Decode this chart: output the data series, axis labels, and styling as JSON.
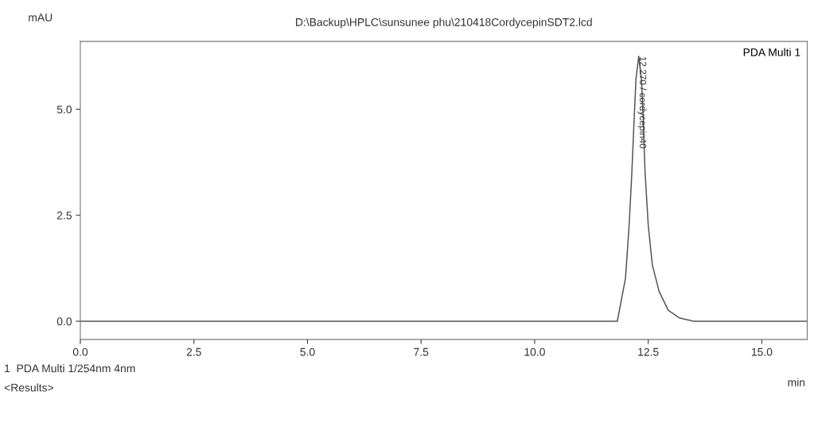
{
  "chart_data": {
    "type": "line",
    "title": "D:\\Backup\\HPLC\\sunsunee phu\\210418CordycepinSDT2.lcd",
    "xlabel": "min",
    "ylabel": "mAU",
    "series": [
      {
        "name": "PDA Multi 1",
        "color": "#555555",
        "x": [
          0.0,
          2.0,
          4.0,
          6.0,
          8.0,
          10.0,
          11.0,
          11.82,
          12.0,
          12.08,
          12.14,
          12.19,
          12.23,
          12.29,
          12.35,
          12.39,
          12.43,
          12.5,
          12.59,
          12.74,
          12.94,
          13.18,
          13.5,
          14.5,
          16.0
        ],
        "values": [
          0.0,
          0.0,
          0.0,
          0.0,
          0.0,
          0.0,
          0.0,
          0.0,
          1.02,
          2.27,
          3.52,
          4.77,
          5.71,
          6.25,
          5.71,
          4.77,
          3.52,
          2.27,
          1.33,
          0.7,
          0.26,
          0.08,
          0.0,
          0.0,
          0.0
        ]
      }
    ],
    "xlim": [
      0,
      16
    ],
    "ylim": [
      -0.43,
      6.6
    ],
    "xticks": [
      {
        "value": 0,
        "label": "0.0"
      },
      2.5,
      {
        "value": 5,
        "label": "5.0"
      },
      7.5,
      {
        "value": 10,
        "label": "10.0"
      },
      12.5,
      {
        "value": 15,
        "label": "15.0"
      }
    ],
    "yticks": [
      {
        "value": 0,
        "label": "0.0"
      },
      2.5,
      {
        "value": 5,
        "label": "5.0"
      }
    ],
    "grid": false,
    "legend": "top right",
    "marker": "none",
    "line_style": "solid",
    "annotations": [
      {
        "text": "12.270 / cordycepin40",
        "x": 12.27,
        "y": 6.25
      },
      "1  PDA Multi 1/254nm 4nm",
      "<Results>"
    ]
  }
}
